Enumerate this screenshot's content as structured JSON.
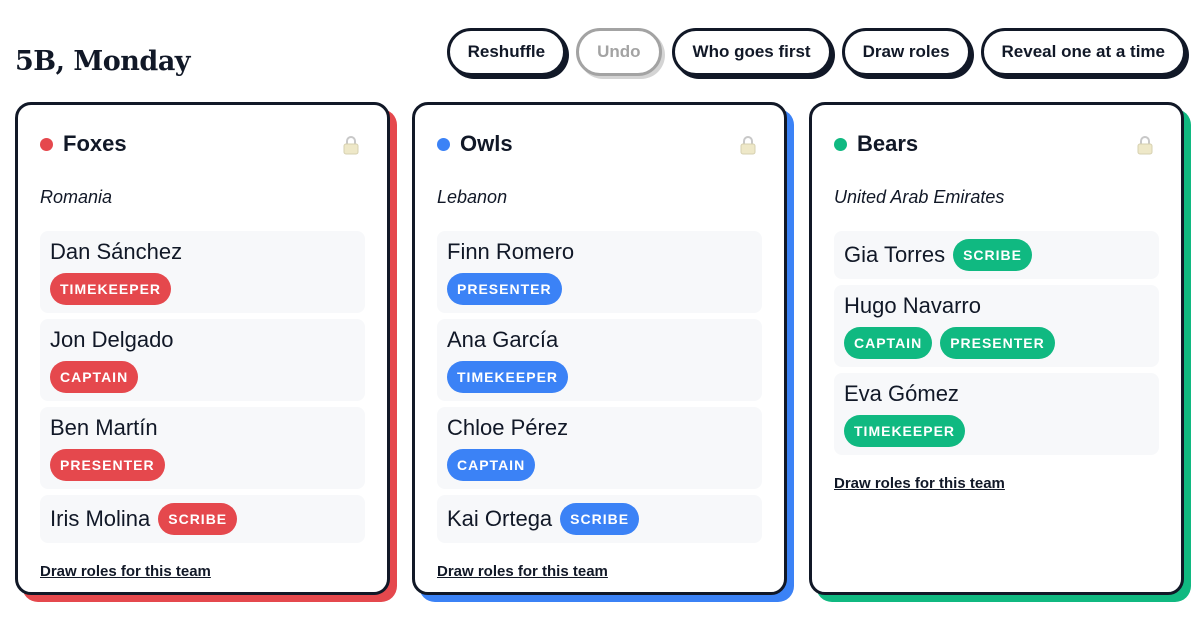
{
  "header": {
    "title": "5B, Monday"
  },
  "toolbar": {
    "buttons": [
      {
        "label": "Reshuffle",
        "disabled": false
      },
      {
        "label": "Undo",
        "disabled": true
      },
      {
        "label": "Who goes first",
        "disabled": false
      },
      {
        "label": "Draw roles",
        "disabled": false
      },
      {
        "label": "Reveal one at a time",
        "disabled": false
      }
    ]
  },
  "teams": [
    {
      "name": "Foxes",
      "color": "#e5484d",
      "country": "Romania",
      "members": [
        {
          "name": "Dan Sánchez",
          "roles": [
            "TIMEKEEPER"
          ]
        },
        {
          "name": "Jon Delgado",
          "roles": [
            "CAPTAIN"
          ]
        },
        {
          "name": "Ben Martín",
          "roles": [
            "PRESENTER"
          ]
        },
        {
          "name": "Iris Molina",
          "roles": [
            "SCRIBE"
          ]
        }
      ],
      "action": "Draw roles for this team"
    },
    {
      "name": "Owls",
      "color": "#3b82f6",
      "country": "Lebanon",
      "members": [
        {
          "name": "Finn Romero",
          "roles": [
            "PRESENTER"
          ]
        },
        {
          "name": "Ana García",
          "roles": [
            "TIMEKEEPER"
          ]
        },
        {
          "name": "Chloe Pérez",
          "roles": [
            "CAPTAIN"
          ]
        },
        {
          "name": "Kai Ortega",
          "roles": [
            "SCRIBE"
          ]
        }
      ],
      "action": "Draw roles for this team"
    },
    {
      "name": "Bears",
      "color": "#10b981",
      "country": "United Arab Emirates",
      "members": [
        {
          "name": "Gia Torres",
          "roles": [
            "SCRIBE"
          ]
        },
        {
          "name": "Hugo Navarro",
          "roles": [
            "CAPTAIN",
            "PRESENTER"
          ]
        },
        {
          "name": "Eva Gómez",
          "roles": [
            "TIMEKEEPER"
          ]
        }
      ],
      "action": "Draw roles for this team"
    }
  ]
}
